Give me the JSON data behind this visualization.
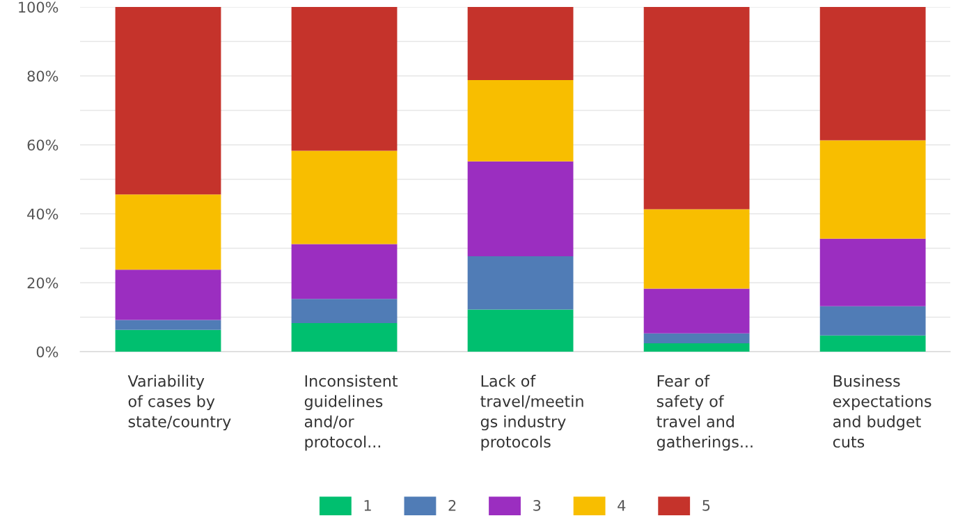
{
  "chart_data": {
    "type": "bar",
    "stacked": true,
    "categories": [
      "Variability\nof cases by\nstate/country",
      "Inconsistent\nguidelines\nand/or\nprotocol...",
      "Lack of\ntravel/meetin\ngs industry\nprotocols",
      "Fear of\nsafety of\ntravel and\ngatherings...",
      "Business\nexpectations\nand budget\ncuts"
    ],
    "series": [
      {
        "name": "1",
        "color": "#00bf6f",
        "values": [
          6.3,
          8.3,
          12.2,
          2.4,
          4.7
        ]
      },
      {
        "name": "2",
        "color": "#507cb6",
        "values": [
          2.9,
          7.0,
          15.5,
          2.9,
          8.5
        ]
      },
      {
        "name": "3",
        "color": "#9b2ec0",
        "values": [
          14.6,
          15.9,
          27.5,
          13.0,
          19.6
        ]
      },
      {
        "name": "4",
        "color": "#f8be00",
        "values": [
          21.8,
          27.1,
          23.6,
          23.0,
          28.5
        ]
      },
      {
        "name": "5",
        "color": "#c5332b",
        "values": [
          54.4,
          41.7,
          21.2,
          58.7,
          38.7
        ]
      }
    ],
    "ylim": [
      0,
      100
    ],
    "yticks": [
      {
        "value": 0,
        "label": "0%"
      },
      {
        "value": 10,
        "label": null
      },
      {
        "value": 20,
        "label": "20%"
      },
      {
        "value": 30,
        "label": null
      },
      {
        "value": 40,
        "label": "40%"
      },
      {
        "value": 50,
        "label": null
      },
      {
        "value": 60,
        "label": "60%"
      },
      {
        "value": 70,
        "label": null
      },
      {
        "value": 80,
        "label": "80%"
      },
      {
        "value": 90,
        "label": null
      },
      {
        "value": 100,
        "label": "100%"
      }
    ],
    "grid": "y",
    "legend": "bottom"
  }
}
